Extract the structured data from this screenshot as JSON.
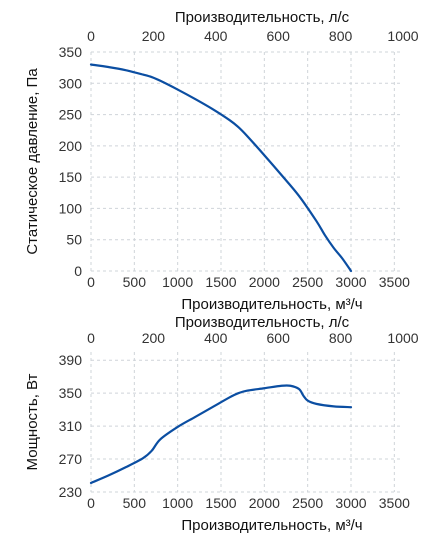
{
  "chart_data": [
    {
      "type": "line",
      "title": "",
      "top_xlabel": "Производительность, л/с",
      "top_xticks": [
        "0",
        "200",
        "400",
        "600",
        "800",
        "1000"
      ],
      "top_xlim": [
        0,
        1000
      ],
      "xlabel": "Производительность, м³/ч",
      "xticks": [
        "0",
        "500",
        "1000",
        "1500",
        "2000",
        "2500",
        "3000",
        "3500"
      ],
      "xlim": [
        0,
        3600
      ],
      "ylabel": "Статическое давление, Па",
      "yticks": [
        "0",
        "50",
        "100",
        "150",
        "200",
        "250",
        "300",
        "350"
      ],
      "ylim": [
        0,
        350
      ],
      "grid": true,
      "color": "#0b4ea2",
      "x": [
        0,
        200,
        400,
        600,
        700,
        800,
        1000,
        1200,
        1400,
        1600,
        1700,
        1800,
        2000,
        2200,
        2400,
        2600,
        2700,
        2800,
        2900,
        3000
      ],
      "y": [
        330,
        326,
        321,
        314,
        310,
        304,
        290,
        275,
        259,
        241,
        230,
        216,
        185,
        153,
        120,
        80,
        57,
        37,
        20,
        0
      ]
    },
    {
      "type": "line",
      "title": "",
      "top_xlabel": "Производительность, л/с",
      "top_xticks": [
        "0",
        "200",
        "400",
        "600",
        "800",
        "1000"
      ],
      "top_xlim": [
        0,
        1000
      ],
      "xlabel": "Производительность, м³/ч",
      "xticks": [
        "0",
        "500",
        "1000",
        "1500",
        "2000",
        "2500",
        "3000",
        "3500"
      ],
      "xlim": [
        0,
        3600
      ],
      "ylabel": "Мощность, Вт",
      "yticks": [
        "230",
        "270",
        "310",
        "350",
        "390"
      ],
      "ylim": [
        230,
        400
      ],
      "grid": true,
      "color": "#0b4ea2",
      "x": [
        0,
        200,
        400,
        600,
        700,
        800,
        1000,
        1200,
        1400,
        1600,
        1700,
        1800,
        2000,
        2200,
        2300,
        2400,
        2450,
        2500,
        2600,
        2800,
        3000
      ],
      "y": [
        241,
        250,
        260,
        271,
        280,
        294,
        309,
        321,
        333,
        345,
        350,
        353,
        356,
        359,
        359,
        355,
        347,
        341,
        337,
        334,
        333
      ]
    }
  ]
}
